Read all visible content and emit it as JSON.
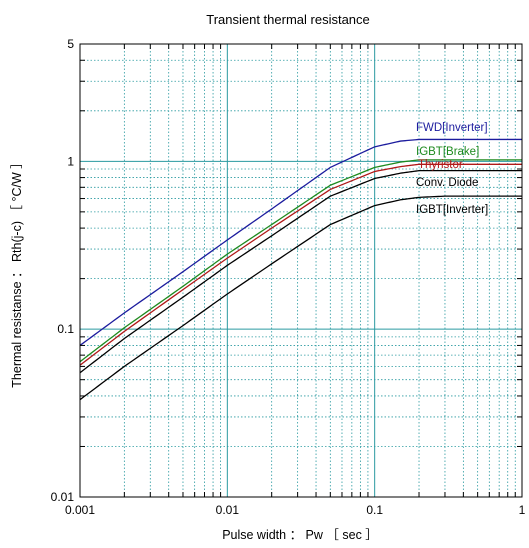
{
  "chart_data": {
    "type": "line",
    "title": "Transient thermal resistance",
    "xlabel": "Pulse width ： Pw ［ sec ］",
    "ylabel": "Thermal resistanse ： Rth(j-c) ［ °C/W ］",
    "xscale": "log",
    "yscale": "log",
    "xlim": [
      0.001,
      1
    ],
    "ylim": [
      0.01,
      5
    ],
    "xticks": [
      {
        "value": 0.001,
        "label": "0.001"
      },
      {
        "value": 0.01,
        "label": "0.01"
      },
      {
        "value": 0.1,
        "label": "0.1"
      },
      {
        "value": 1,
        "label": "1"
      }
    ],
    "yticks": [
      {
        "value": 0.01,
        "label": "0.01"
      },
      {
        "value": 0.1,
        "label": "0.1"
      },
      {
        "value": 1,
        "label": "1"
      },
      {
        "value": 5,
        "label": "5"
      }
    ],
    "grid": true,
    "series": [
      {
        "name": "FWD[Inverter]",
        "color": "#1c1c9e",
        "x": [
          0.001,
          0.002,
          0.005,
          0.01,
          0.02,
          0.05,
          0.1,
          0.15,
          0.2,
          0.3,
          0.5,
          1
        ],
        "y": [
          0.08,
          0.125,
          0.22,
          0.34,
          0.52,
          0.92,
          1.22,
          1.32,
          1.35,
          1.35,
          1.35,
          1.35
        ]
      },
      {
        "name": "IGBT[Brake]",
        "color": "#1e8a1e",
        "x": [
          0.001,
          0.002,
          0.005,
          0.01,
          0.02,
          0.05,
          0.1,
          0.15,
          0.2,
          0.3,
          0.5,
          1
        ],
        "y": [
          0.064,
          0.102,
          0.18,
          0.28,
          0.42,
          0.72,
          0.92,
          0.99,
          1.02,
          1.02,
          1.02,
          1.02
        ]
      },
      {
        "name": "Thyristor",
        "color": "#b01818",
        "x": [
          0.001,
          0.002,
          0.005,
          0.01,
          0.02,
          0.05,
          0.1,
          0.15,
          0.2,
          0.3,
          0.5,
          1
        ],
        "y": [
          0.061,
          0.097,
          0.172,
          0.265,
          0.4,
          0.68,
          0.87,
          0.93,
          0.96,
          0.96,
          0.96,
          0.96
        ]
      },
      {
        "name": "Conv. Diode",
        "color": "#000000",
        "x": [
          0.001,
          0.002,
          0.005,
          0.01,
          0.02,
          0.05,
          0.1,
          0.15,
          0.2,
          0.3,
          0.5,
          1
        ],
        "y": [
          0.055,
          0.088,
          0.155,
          0.24,
          0.36,
          0.62,
          0.79,
          0.85,
          0.88,
          0.88,
          0.88,
          0.88
        ]
      },
      {
        "name": "IGBT[Inverter]",
        "color": "#000000",
        "x": [
          0.001,
          0.002,
          0.005,
          0.01,
          0.02,
          0.05,
          0.1,
          0.15,
          0.2,
          0.3,
          0.5,
          1
        ],
        "y": [
          0.038,
          0.06,
          0.105,
          0.162,
          0.245,
          0.42,
          0.545,
          0.59,
          0.61,
          0.62,
          0.62,
          0.62
        ]
      }
    ]
  }
}
